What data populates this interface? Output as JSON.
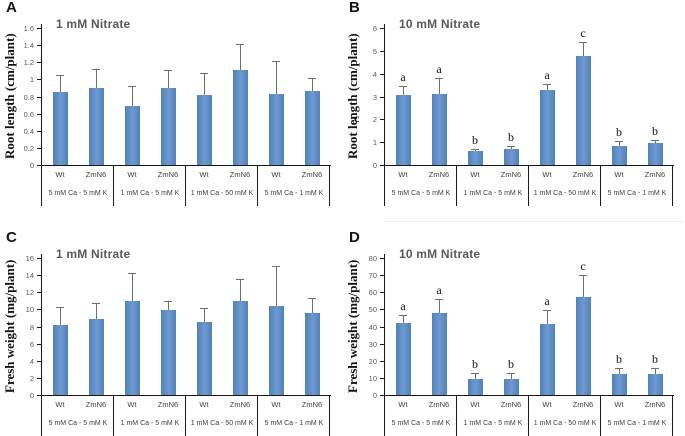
{
  "figure": {
    "background": "#ffffff",
    "bar_color": "#4f81bd",
    "bar_highlight": "#6f9ace",
    "error_bar_color": "#6e6e6e",
    "axis_color": "#1a1a1a",
    "title_color": "#595959",
    "dotted_separator_color": "#e2e2e2"
  },
  "chart_data": [
    {
      "panel": "A",
      "type": "bar",
      "title": "1 mM Nitrate",
      "ylabel": "Root length (cm/plant)",
      "ylim": [
        0,
        1.6
      ],
      "yticks": [
        0,
        0.2,
        0.4,
        0.6,
        0.8,
        1,
        1.2,
        1.4,
        1.6
      ],
      "grid": false,
      "legend": "none",
      "categories": [
        "5 mM Ca - 5 mM K",
        "1 mM Ca - 5 mM K",
        "1 mM Ca - 50 mM K",
        "5 mM Ca - 1 mM K"
      ],
      "series": [
        {
          "name": "Wt",
          "values": [
            0.85,
            0.69,
            0.82,
            0.83
          ],
          "error_top": [
            1.05,
            0.92,
            1.08,
            1.22
          ],
          "sig_letters": [
            "",
            "",
            "",
            ""
          ]
        },
        {
          "name": "ZmN6",
          "values": [
            0.9,
            0.9,
            1.11,
            0.86
          ],
          "error_top": [
            1.12,
            1.11,
            1.41,
            1.02
          ],
          "sig_letters": [
            "",
            "",
            "",
            ""
          ]
        }
      ],
      "stray_label": ""
    },
    {
      "panel": "B",
      "type": "bar",
      "title": "10 mM Nitrate",
      "ylabel": "Root length (cm/plant)",
      "ylim": [
        0,
        6
      ],
      "yticks": [
        0,
        1,
        2,
        3,
        4,
        5,
        6
      ],
      "grid": false,
      "legend": "none",
      "categories": [
        "5 mM Ca - 5 mM K",
        "1 mM Ca - 5 mM K",
        "1 mM Ca - 50 mM K",
        "5 mM Ca - 1 mM K"
      ],
      "series": [
        {
          "name": "Wt",
          "values": [
            3.05,
            0.6,
            3.27,
            0.82
          ],
          "error_top": [
            3.45,
            0.72,
            3.55,
            1.05
          ],
          "sig_letters": [
            "a",
            "b",
            "a",
            "b"
          ]
        },
        {
          "name": "ZmN6",
          "values": [
            3.1,
            0.7,
            4.78,
            0.95
          ],
          "error_top": [
            3.8,
            0.85,
            5.4,
            1.1
          ],
          "sig_letters": [
            "a",
            "b",
            "c",
            "b"
          ]
        }
      ],
      "stray_label": "c"
    },
    {
      "panel": "C",
      "type": "bar",
      "title": "1 mM Nitrate",
      "ylabel": "Fresh weight (mg/plant)",
      "ylim": [
        0,
        16
      ],
      "yticks": [
        0,
        2,
        4,
        6,
        8,
        10,
        12,
        14,
        16
      ],
      "grid": false,
      "legend": "none",
      "categories": [
        "5 mM Ca - 5 mM K",
        "1 mM Ca - 5 mM K",
        "1 mM Ca - 50 mM K",
        "5 mM Ca - 1 mM K"
      ],
      "series": [
        {
          "name": "Wt",
          "values": [
            8.2,
            11.0,
            8.5,
            10.4
          ],
          "error_top": [
            10.3,
            14.2,
            10.2,
            15.1
          ],
          "sig_letters": [
            "",
            "",
            "",
            ""
          ]
        },
        {
          "name": "ZmN6",
          "values": [
            8.9,
            9.9,
            11.0,
            9.6
          ],
          "error_top": [
            10.7,
            11.0,
            13.5,
            11.3
          ],
          "sig_letters": [
            "",
            "",
            "",
            ""
          ]
        }
      ],
      "stray_label": ""
    },
    {
      "panel": "D",
      "type": "bar",
      "title": "10 mM Nitrate",
      "ylabel": "Fresh weight (mg/plant)",
      "ylim": [
        0,
        80
      ],
      "yticks": [
        0,
        10,
        20,
        30,
        40,
        50,
        60,
        70,
        80
      ],
      "grid": false,
      "legend": "none",
      "categories": [
        "5 mM Ca - 5 mM K",
        "1 mM Ca - 5 mM K",
        "1 mM Ca - 50 mM K",
        "5 mM Ca - 1 mM K"
      ],
      "series": [
        {
          "name": "Wt",
          "values": [
            42.0,
            9.5,
            41.5,
            12.5
          ],
          "error_top": [
            47.0,
            13.0,
            49.5,
            16.0
          ],
          "sig_letters": [
            "a",
            "b",
            "a",
            "b"
          ]
        },
        {
          "name": "ZmN6",
          "values": [
            48.0,
            9.5,
            57.0,
            12.0
          ],
          "error_top": [
            56.0,
            13.0,
            70.0,
            15.5
          ],
          "sig_letters": [
            "a",
            "b",
            "c",
            "b"
          ]
        }
      ],
      "stray_label": ""
    }
  ]
}
